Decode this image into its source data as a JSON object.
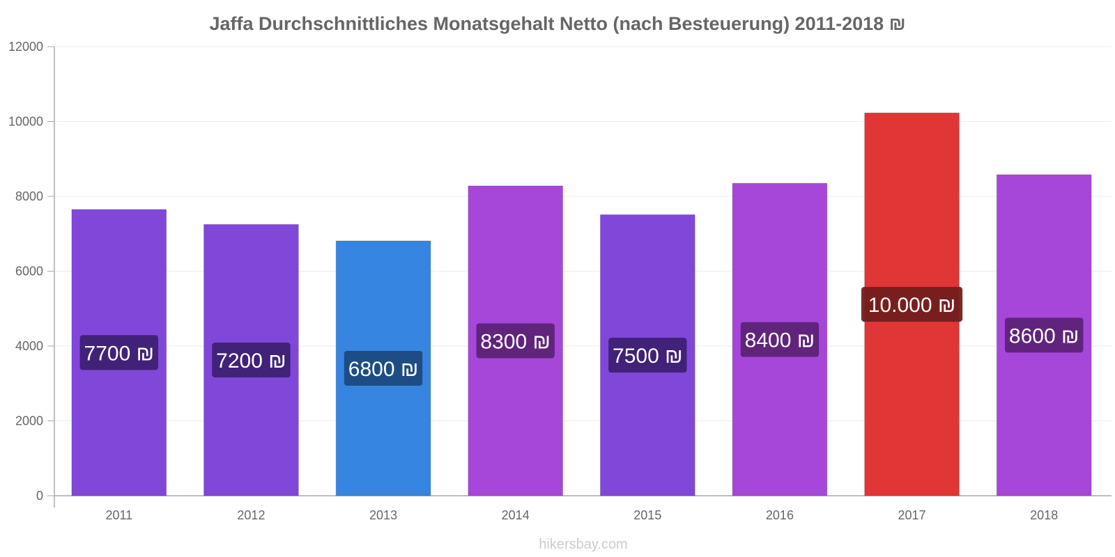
{
  "chart_data": {
    "type": "bar",
    "title": "Jaffa Durchschnittliches Monatsgehalt Netto (nach Besteuerung) 2011-2018 ₪",
    "xlabel": "",
    "ylabel": "",
    "ylim": [
      0,
      12000
    ],
    "yticks": [
      "0",
      "2000",
      "4000",
      "6000",
      "8000",
      "10000",
      "12000"
    ],
    "grid": true,
    "categories": [
      "2011",
      "2012",
      "2013",
      "2014",
      "2015",
      "2016",
      "2017",
      "2018"
    ],
    "values": [
      7650,
      7250,
      6810,
      8280,
      7510,
      8350,
      10230,
      8580
    ],
    "data_labels": [
      "7700 ₪",
      "7200 ₪",
      "6800 ₪",
      "8300 ₪",
      "7500 ₪",
      "8400 ₪",
      "10.000 ₪",
      "8600 ₪"
    ],
    "bar_colors": [
      "#8047d9",
      "#8047d9",
      "#3685e0",
      "#a647d9",
      "#8047d9",
      "#a647d9",
      "#e03636",
      "#a647d9"
    ],
    "label_box_colors": [
      "#3d2173",
      "#3d2173",
      "#1d4a80",
      "#5c2378",
      "#3d2173",
      "#5c2378",
      "#731d1d",
      "#5c2378"
    ]
  },
  "watermark": "hikersbay.com"
}
